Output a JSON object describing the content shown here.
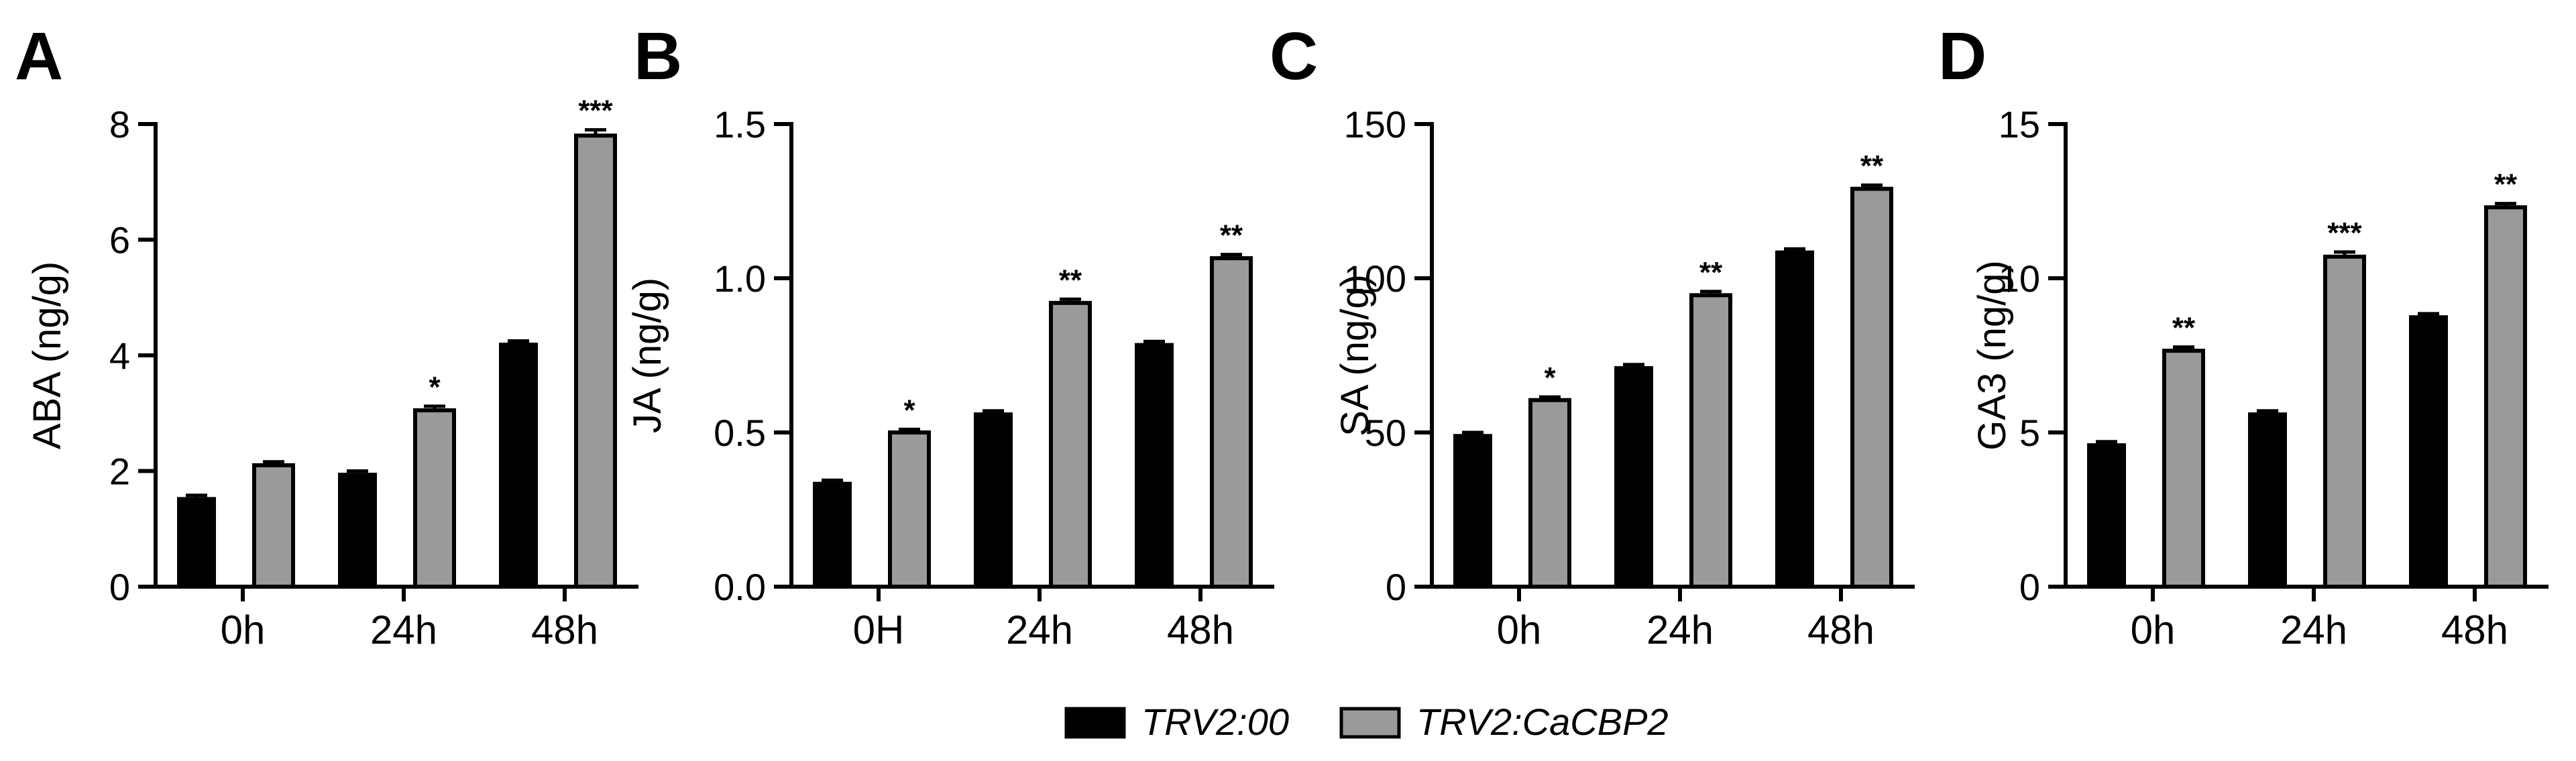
{
  "legend": [
    {
      "label": "TRV2:00",
      "color": "#000000"
    },
    {
      "label": "TRV2:CaCBP2",
      "color": "#9a9a9c"
    }
  ],
  "chart_data": [
    {
      "panel": "A",
      "type": "bar",
      "categories": [
        "0h",
        "24h",
        "48h"
      ],
      "ylabel": "ABA (ng/g)",
      "ylim": [
        0,
        8
      ],
      "yticks": [
        0,
        2,
        4,
        6,
        8
      ],
      "ytick_labels": [
        "0",
        "2",
        "4",
        "6",
        "8"
      ],
      "series": [
        {
          "name": "TRV2:00",
          "values": [
            1.55,
            1.97,
            4.22
          ],
          "errors": [
            0.03,
            0.03,
            0.03
          ]
        },
        {
          "name": "TRV2:CaCBP2",
          "values": [
            2.1,
            3.05,
            7.8
          ],
          "errors": [
            0.06,
            0.07,
            0.1
          ]
        }
      ],
      "significance": [
        "",
        "*",
        "***"
      ]
    },
    {
      "panel": "B",
      "type": "bar",
      "categories": [
        "0H",
        "24h",
        "48h"
      ],
      "ylabel": "JA (ng/g)",
      "ylim": [
        0,
        1.5
      ],
      "yticks": [
        0,
        0.5,
        1.0,
        1.5
      ],
      "ytick_labels": [
        "0.0",
        "0.5",
        "1.0",
        "1.5"
      ],
      "series": [
        {
          "name": "TRV2:00",
          "values": [
            0.34,
            0.565,
            0.79
          ],
          "errors": [
            0.005,
            0.005,
            0.005
          ]
        },
        {
          "name": "TRV2:CaCBP2",
          "values": [
            0.5,
            0.92,
            1.065
          ],
          "errors": [
            0.01,
            0.012,
            0.012
          ]
        }
      ],
      "significance": [
        "*",
        "**",
        "**"
      ]
    },
    {
      "panel": "C",
      "type": "bar",
      "categories": [
        "0h",
        "24h",
        "48h"
      ],
      "ylabel": "SA (ng/g)",
      "ylim": [
        0,
        150
      ],
      "yticks": [
        0,
        50,
        100,
        150
      ],
      "ytick_labels": [
        "0",
        "50",
        "100",
        "150"
      ],
      "series": [
        {
          "name": "TRV2:00",
          "values": [
            49.5,
            71.5,
            109
          ],
          "errors": [
            0.5,
            0.5,
            0.5
          ]
        },
        {
          "name": "TRV2:CaCBP2",
          "values": [
            60.5,
            94.5,
            129
          ],
          "errors": [
            1.0,
            1.2,
            1.2
          ]
        }
      ],
      "significance": [
        "*",
        "**",
        "**"
      ]
    },
    {
      "panel": "D",
      "type": "bar",
      "categories": [
        "0h",
        "24h",
        "48h"
      ],
      "ylabel": "GA3 (ng/g)",
      "ylim": [
        0,
        15
      ],
      "yticks": [
        0,
        5,
        10,
        15
      ],
      "ytick_labels": [
        "0",
        "5",
        "10",
        "15"
      ],
      "series": [
        {
          "name": "TRV2:00",
          "values": [
            4.65,
            5.65,
            8.8
          ],
          "errors": [
            0.05,
            0.05,
            0.05
          ]
        },
        {
          "name": "TRV2:CaCBP2",
          "values": [
            7.65,
            10.7,
            12.3
          ],
          "errors": [
            0.12,
            0.15,
            0.12
          ]
        }
      ],
      "significance": [
        "**",
        "***",
        "**"
      ]
    }
  ]
}
